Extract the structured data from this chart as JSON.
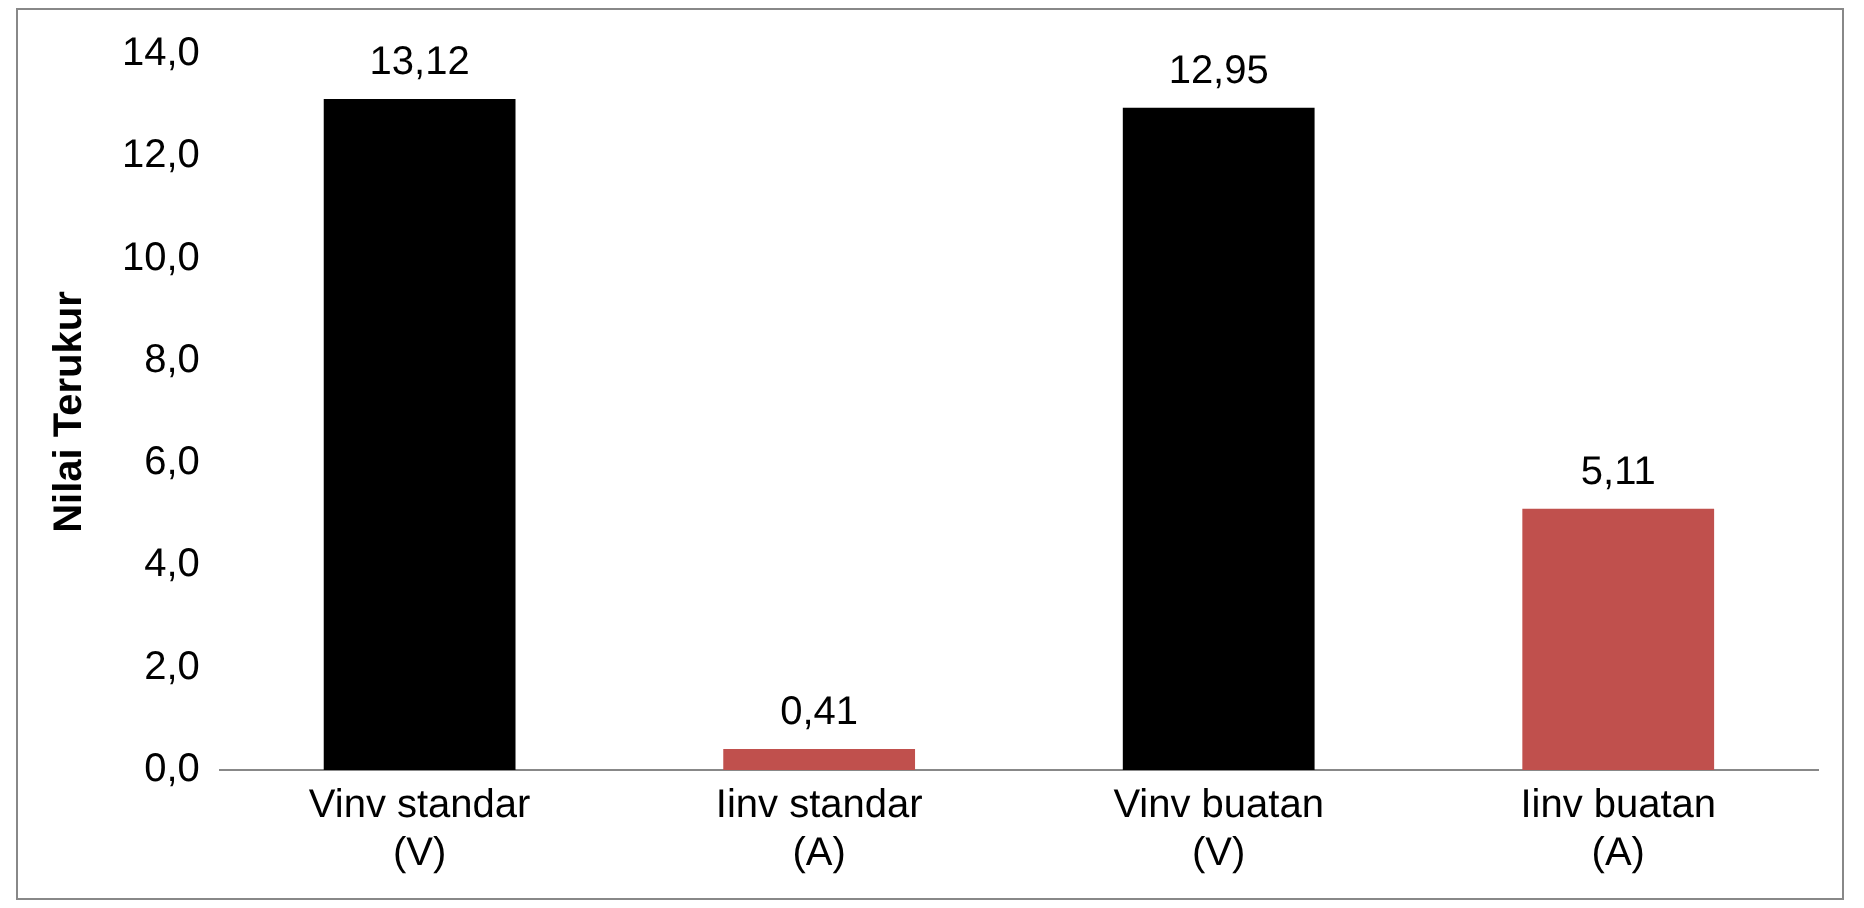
{
  "chart_data": {
    "type": "bar",
    "ylabel": "Nilai Terukur",
    "categories": [
      "Vinv standar\n(V)",
      "Iinv standar\n(A)",
      "Vinv buatan\n(V)",
      "Iinv buatan\n(A)"
    ],
    "values": [
      13.12,
      0.41,
      12.95,
      5.11
    ],
    "colors": [
      "#000000",
      "#c0504d",
      "#000000",
      "#c0504d"
    ],
    "value_labels": [
      "13,12",
      "0,41",
      "12,95",
      "5,11"
    ],
    "ylim": [
      0,
      14
    ],
    "yticks": [
      {
        "value": 0,
        "label": "0,0"
      },
      {
        "value": 2,
        "label": "2,0"
      },
      {
        "value": 4,
        "label": "4,0"
      },
      {
        "value": 6,
        "label": "6,0"
      },
      {
        "value": 8,
        "label": "8,0"
      },
      {
        "value": 10,
        "label": "10,0"
      },
      {
        "value": 12,
        "label": "12,0"
      },
      {
        "value": 14,
        "label": "14,0"
      }
    ],
    "grid": false,
    "legend": false
  }
}
